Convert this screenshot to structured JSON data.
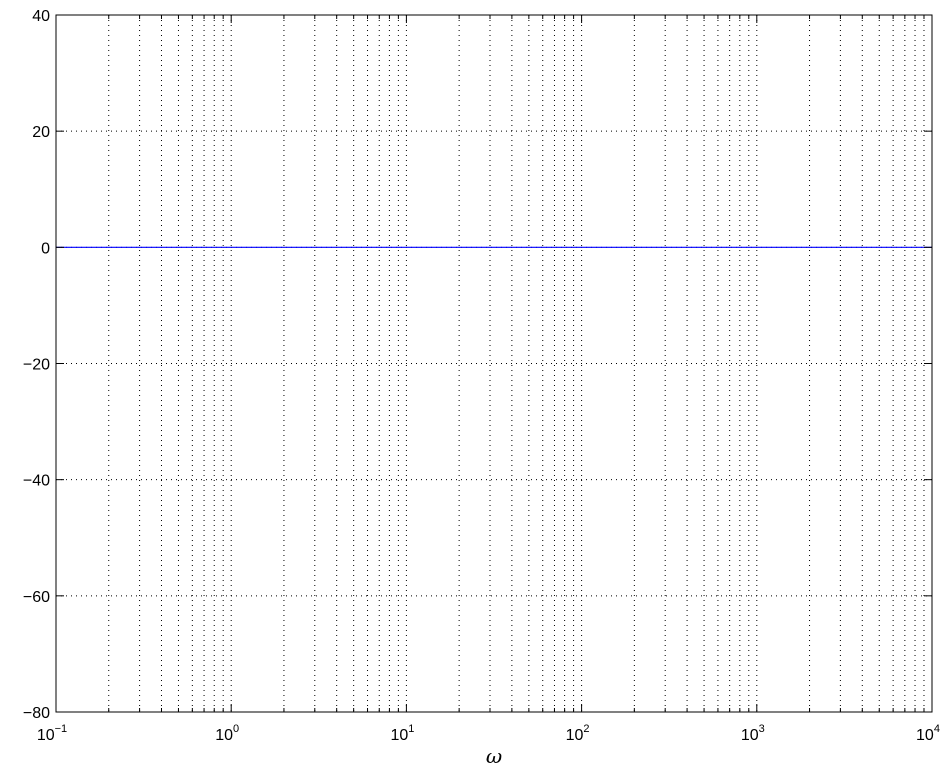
{
  "chart_data": {
    "type": "line",
    "xlabel": "ω",
    "ylabel": "",
    "title": "",
    "xscale": "log",
    "xlim": [
      0.1,
      10000
    ],
    "ylim": [
      -80,
      40
    ],
    "grid": true,
    "x_ticks": [
      {
        "base": "10",
        "exp": "−1",
        "value": 0.1
      },
      {
        "base": "10",
        "exp": "0",
        "value": 1
      },
      {
        "base": "10",
        "exp": "1",
        "value": 10
      },
      {
        "base": "10",
        "exp": "2",
        "value": 100
      },
      {
        "base": "10",
        "exp": "3",
        "value": 1000
      },
      {
        "base": "10",
        "exp": "4",
        "value": 10000
      }
    ],
    "y_ticks": [
      {
        "label": "40",
        "value": 40
      },
      {
        "label": "20",
        "value": 20
      },
      {
        "label": "0",
        "value": 0
      },
      {
        "label": "−20",
        "value": -20
      },
      {
        "label": "−40",
        "value": -40
      },
      {
        "label": "−60",
        "value": -60
      },
      {
        "label": "−80",
        "value": -80
      }
    ],
    "series": [
      {
        "color": "#0000ff",
        "x": [
          0.1,
          10000
        ],
        "y": [
          0,
          0
        ]
      }
    ]
  }
}
